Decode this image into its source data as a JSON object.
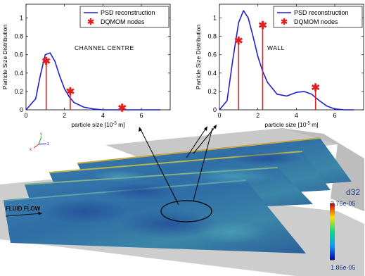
{
  "chart_data": [
    {
      "type": "line",
      "annotation": "CHANNEL CENTRE",
      "xlabel": "particle size [10",
      "xlabel_sup": "-5",
      "xlabel_unit": " m]",
      "ylabel": "Particle Size Distribution",
      "xlim": [
        0,
        7.5
      ],
      "ylim": [
        0,
        1.15
      ],
      "xticks": [
        0,
        2,
        4,
        6
      ],
      "yticks": [
        0,
        0.2,
        0.4,
        0.6,
        0.8,
        1
      ],
      "legend_position": "top-right",
      "series": [
        {
          "name": "PSD reconstruction",
          "color": "#1f1fd6",
          "x": [
            0,
            0.5,
            0.75,
            1.0,
            1.25,
            1.5,
            1.75,
            2.0,
            2.25,
            2.5,
            3.0,
            3.5,
            4.0,
            5.0,
            6.0,
            7.0
          ],
          "y": [
            0,
            0.12,
            0.38,
            0.6,
            0.62,
            0.53,
            0.37,
            0.23,
            0.14,
            0.08,
            0.03,
            0.01,
            0.0,
            0,
            0,
            0
          ]
        },
        {
          "name": "DQMOM nodes",
          "color": "#e02020",
          "x": [
            1.05,
            2.3,
            5.0
          ],
          "y": [
            0.53,
            0.2,
            0.02
          ]
        }
      ]
    },
    {
      "type": "line",
      "annotation": "WALL",
      "xlabel": "particle size [10",
      "xlabel_sup": "-5",
      "xlabel_unit": " m]",
      "ylabel": "Particle Size Distribution",
      "xlim": [
        0,
        7.5
      ],
      "ylim": [
        0,
        1.15
      ],
      "xticks": [
        0,
        2,
        4,
        6
      ],
      "yticks": [
        0,
        0.2,
        0.4,
        0.6,
        0.8,
        1
      ],
      "legend_position": "top-right",
      "series": [
        {
          "name": "PSD reconstruction",
          "color": "#1f1fd6",
          "x": [
            0,
            0.4,
            0.7,
            1.0,
            1.25,
            1.5,
            1.75,
            2.0,
            2.25,
            2.5,
            3.0,
            3.5,
            4.0,
            4.4,
            4.8,
            5.2,
            5.6,
            6.0,
            6.5,
            7.0
          ],
          "y": [
            0,
            0.1,
            0.55,
            0.95,
            1.08,
            1.0,
            0.8,
            0.58,
            0.42,
            0.3,
            0.17,
            0.15,
            0.19,
            0.2,
            0.17,
            0.1,
            0.04,
            0.01,
            0,
            0
          ]
        },
        {
          "name": "DQMOM nodes",
          "color": "#e02020",
          "x": [
            1.0,
            2.25,
            5.0
          ],
          "y": [
            0.75,
            0.92,
            0.24
          ]
        }
      ]
    }
  ],
  "flow_figure": {
    "flow_label": "FLUID FLOW",
    "colorbar": {
      "title": "d32",
      "max_label": "3.76e-05",
      "min_label": "1.86e-05"
    },
    "axes_triad": {
      "x": "x",
      "y": "y",
      "z": "z"
    }
  }
}
